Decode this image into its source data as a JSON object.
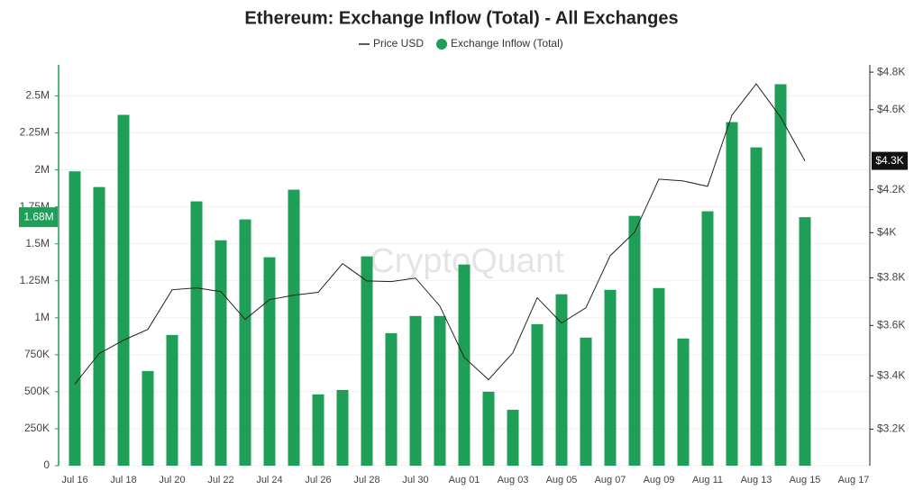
{
  "chart_data": {
    "type": "bar",
    "title": "Ethereum: Exchange Inflow (Total) - All Exchanges",
    "watermark": "CryptoQuant",
    "categories": [
      "Jul 16",
      null,
      "Jul 18",
      null,
      "Jul 20",
      null,
      "Jul 22",
      null,
      "Jul 24",
      null,
      "Jul 26",
      null,
      "Jul 28",
      null,
      "Jul 30",
      null,
      "Aug 01",
      null,
      "Aug 03",
      null,
      "Aug 05",
      null,
      "Aug 07",
      null,
      "Aug 09",
      null,
      "Aug 11",
      null,
      "Aug 13",
      null,
      "Aug 15",
      null,
      "Aug 17"
    ],
    "series": [
      {
        "name": "Price USD",
        "type": "line",
        "axis": "y2",
        "color": "#222222",
        "values": [
          3368,
          3487,
          3540,
          3584,
          3749,
          3757,
          3741,
          3625,
          3707,
          3726,
          3738,
          3862,
          3787,
          3784,
          3799,
          3680,
          3472,
          3385,
          3490,
          3715,
          3610,
          3673,
          3897,
          4002,
          4251,
          4242,
          4216,
          4571,
          4737,
          4561,
          4340,
          null,
          null
        ],
        "value_labels": [
          null,
          null,
          null,
          null,
          null,
          null,
          null,
          null,
          null,
          null,
          null,
          null,
          null,
          null,
          null,
          null,
          null,
          null,
          null,
          null,
          null,
          null,
          null,
          null,
          null,
          null,
          null,
          null,
          null,
          null,
          "$4.3K",
          null,
          null
        ]
      },
      {
        "name": "Exchange Inflow (Total)",
        "type": "bar",
        "color": "#1e9e57",
        "values": [
          1990000,
          1884000,
          2372000,
          640000,
          884000,
          1787000,
          1524000,
          1665000,
          1409000,
          1866000,
          482000,
          512000,
          1415000,
          896000,
          1012000,
          1012000,
          1360000,
          500000,
          378000,
          957000,
          1159000,
          866000,
          1189000,
          1689000,
          1201000,
          860000,
          1720000,
          2323000,
          2152000,
          2579000,
          1680000,
          null,
          null
        ],
        "value_labels": [
          null,
          null,
          null,
          null,
          null,
          null,
          null,
          null,
          null,
          null,
          null,
          null,
          null,
          null,
          null,
          null,
          null,
          null,
          null,
          null,
          null,
          null,
          null,
          null,
          null,
          null,
          null,
          null,
          null,
          null,
          "1.68M",
          null,
          null
        ]
      }
    ],
    "ylim": [
      0,
      2710000
    ],
    "yticks": [
      0,
      {
        "value": 250000,
        "label": "250K"
      },
      {
        "value": 500000,
        "label": "500K"
      },
      {
        "value": 750000,
        "label": "750K"
      },
      {
        "value": 1000000,
        "label": "1M"
      },
      {
        "value": 1250000,
        "label": "1.25M"
      },
      {
        "value": 1500000,
        "label": "1.5M"
      },
      {
        "value": 1750000,
        "label": "1.75M"
      },
      {
        "value": 2000000,
        "label": "2M"
      },
      {
        "value": 2250000,
        "label": "2.25M"
      },
      {
        "value": 2500000,
        "label": "2.5M"
      }
    ],
    "y2lim": [
      3070,
      4840
    ],
    "y2log": true,
    "y2ticks": [
      {
        "value": 3200,
        "label": "$3.2K"
      },
      {
        "value": 3400,
        "label": "$3.4K"
      },
      {
        "value": 3600,
        "label": "$3.6K"
      },
      {
        "value": 3800,
        "label": "$3.8K"
      },
      {
        "value": 4000,
        "label": "$4K"
      },
      {
        "value": 4200,
        "label": "$4.2K"
      },
      {
        "value": 4600,
        "label": "$4.6K"
      },
      {
        "value": 4800,
        "label": "$4.8K"
      }
    ],
    "grid": true
  }
}
